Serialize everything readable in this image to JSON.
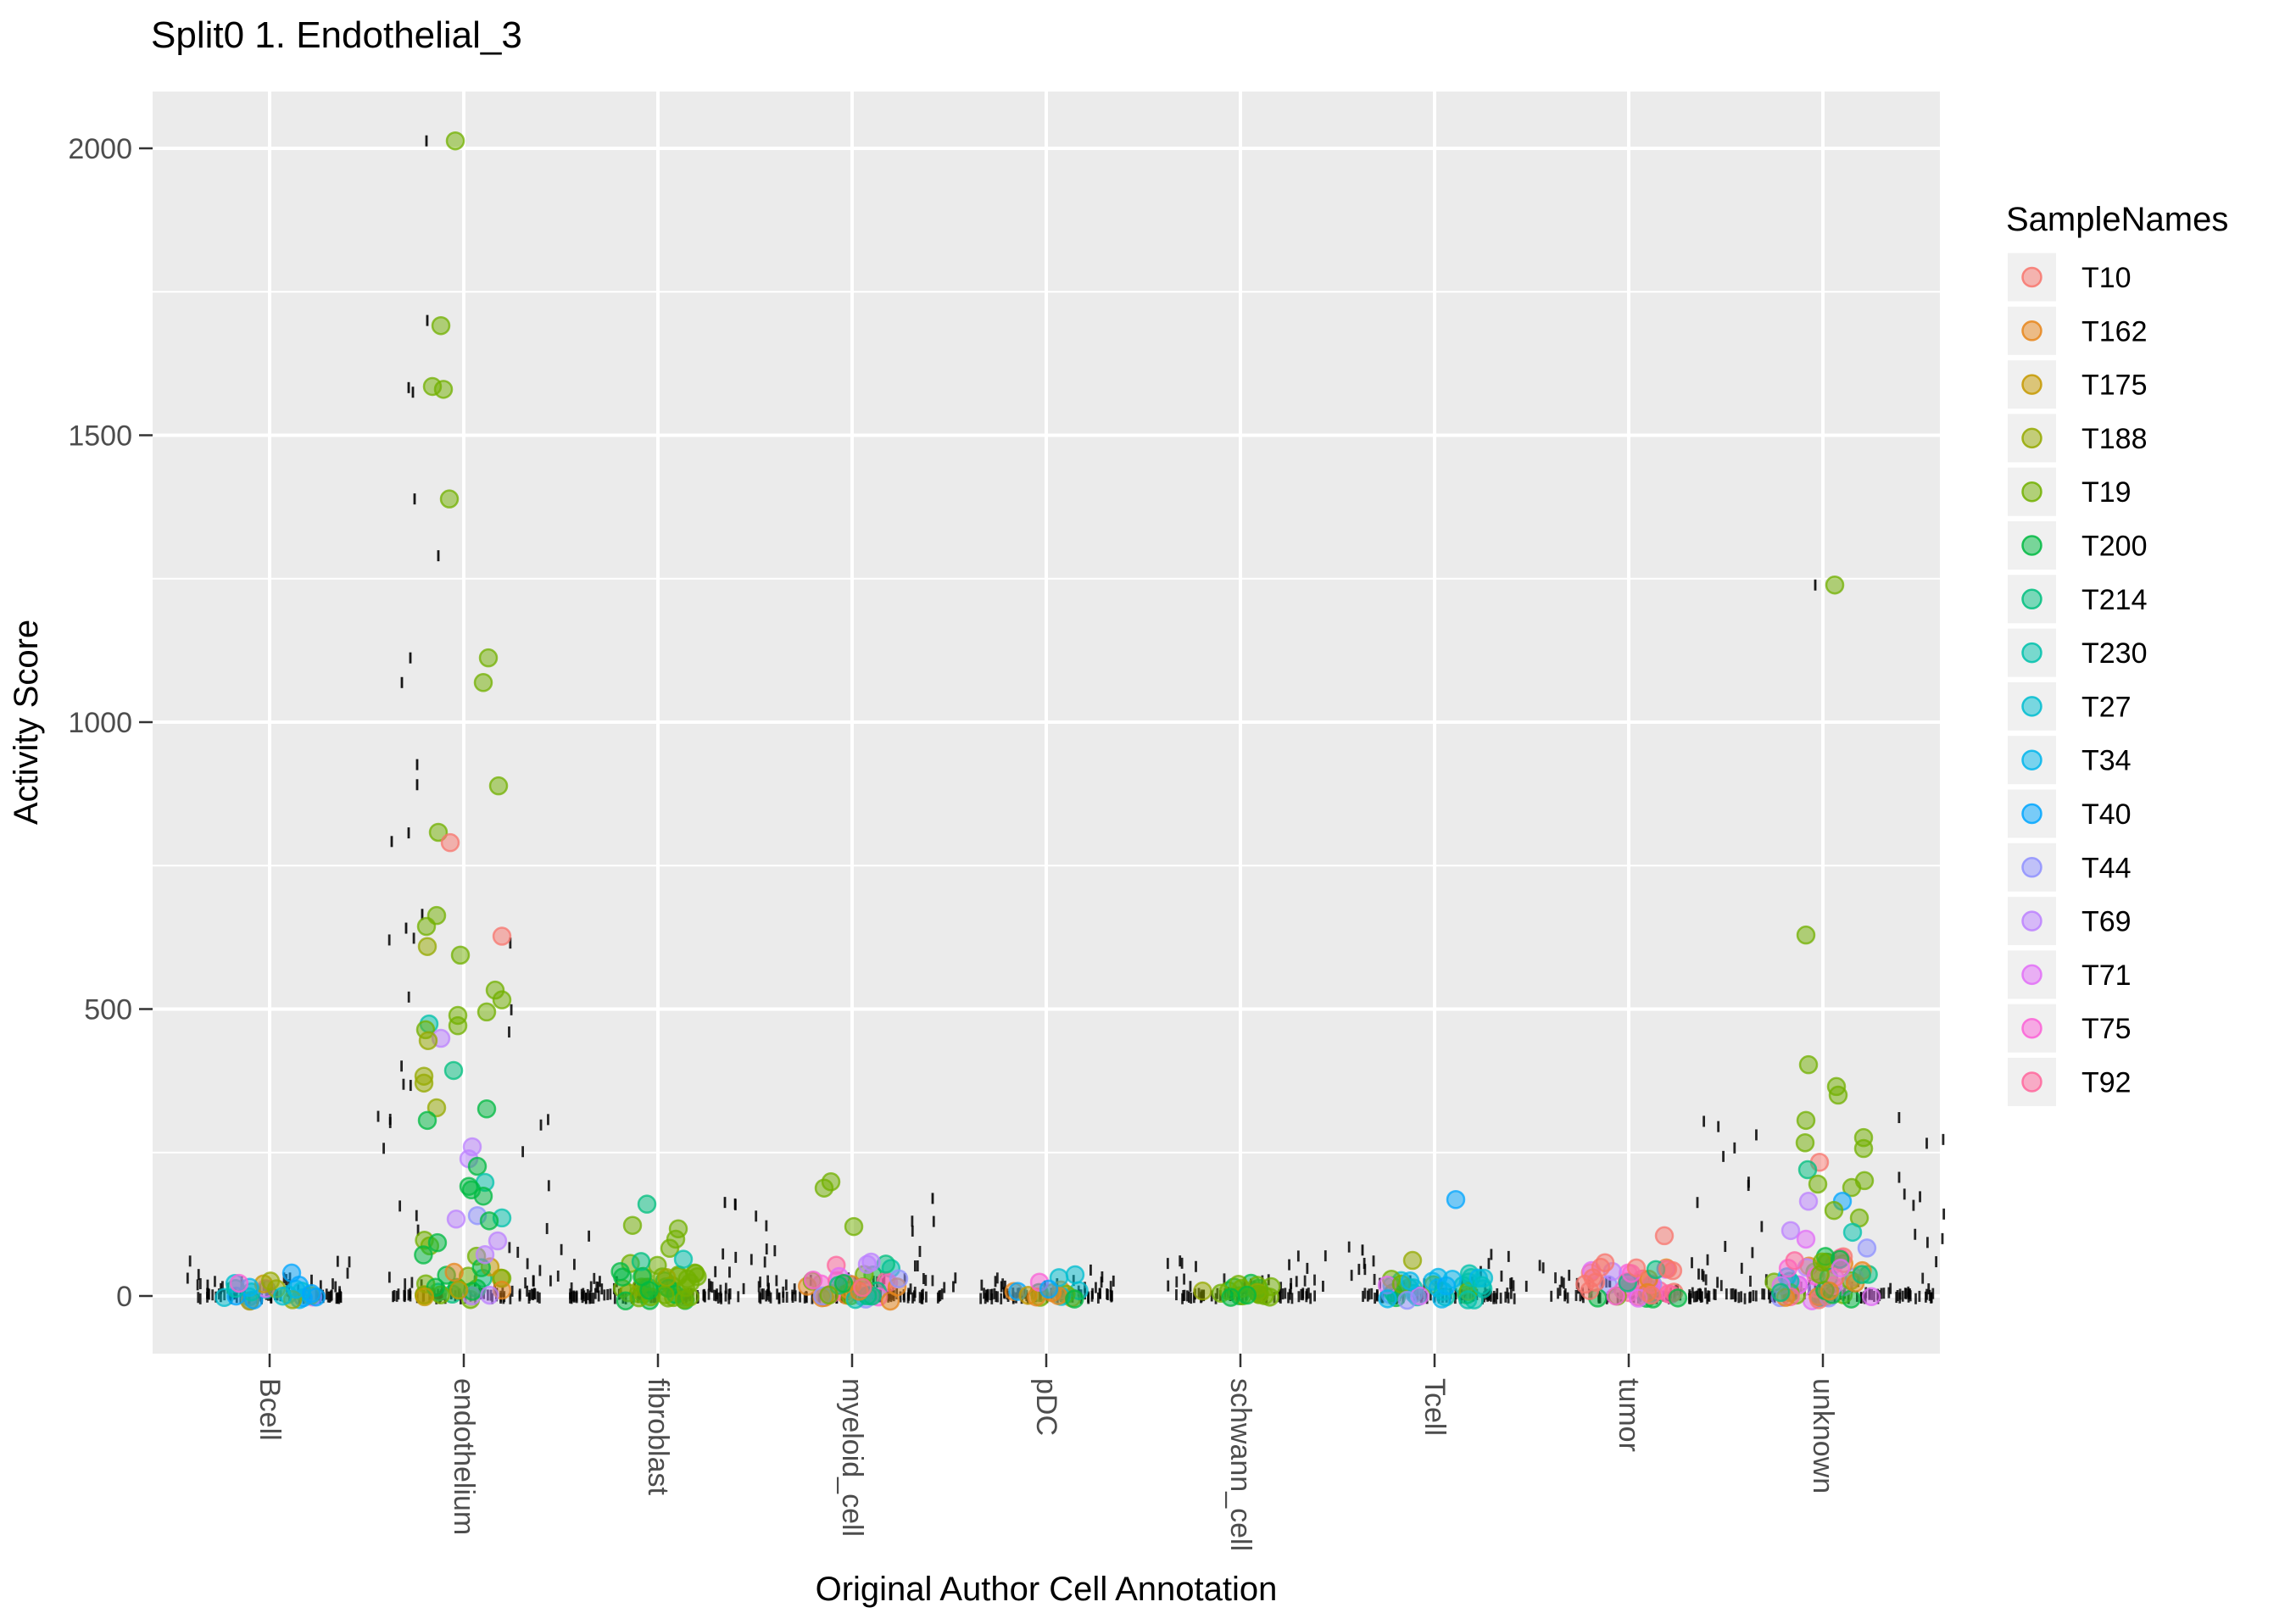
{
  "title": "Split0 1. Endothelial_3",
  "chart_data": {
    "type": "scatter",
    "title": "Split0 1. Endothelial_3",
    "xlabel": "Original Author Cell Annotation",
    "ylabel": "Activity Score",
    "legend_title": "SampleNames",
    "legend_position": "right",
    "x_categories": [
      "Bcell",
      "endothelium",
      "fibroblast",
      "myeloid_cell",
      "pDC",
      "schwann_cell",
      "Tcell",
      "tumor",
      "unknown"
    ],
    "y_ticks": [
      0,
      500,
      1000,
      1500,
      2000
    ],
    "y_minor_gridlines": [
      250,
      750,
      1250,
      1750
    ],
    "ylim": [
      -100,
      2100
    ],
    "grid": "white major+minor horizontal lines and one vertical line per category on grey panel",
    "samples": [
      {
        "name": "T10",
        "color": "#F8766D"
      },
      {
        "name": "T162",
        "color": "#E7861B"
      },
      {
        "name": "T175",
        "color": "#C59900"
      },
      {
        "name": "T188",
        "color": "#95A900"
      },
      {
        "name": "T19",
        "color": "#72B000"
      },
      {
        "name": "T200",
        "color": "#00BA42"
      },
      {
        "name": "T214",
        "color": "#00BF7F"
      },
      {
        "name": "T230",
        "color": "#00C1AB"
      },
      {
        "name": "T27",
        "color": "#00BDD0"
      },
      {
        "name": "T34",
        "color": "#00B5EC"
      },
      {
        "name": "T40",
        "color": "#00A6FF"
      },
      {
        "name": "T44",
        "color": "#8F91FF"
      },
      {
        "name": "T69",
        "color": "#BC81FF"
      },
      {
        "name": "T71",
        "color": "#E26EF7"
      },
      {
        "name": "T75",
        "color": "#FB61D7"
      },
      {
        "name": "T92",
        "color": "#FF669C"
      }
    ],
    "outlier_points": [
      [
        1,
        "T19",
        2013,
        -10
      ],
      [
        1,
        "T19",
        1691,
        -27
      ],
      [
        1,
        "T19",
        1585,
        -37
      ],
      [
        1,
        "T19",
        1580,
        -24
      ],
      [
        1,
        "T19",
        1389,
        -17
      ],
      [
        1,
        "T19",
        1112,
        29
      ],
      [
        1,
        "T19",
        1069,
        23
      ],
      [
        1,
        "T19",
        889,
        41
      ],
      [
        1,
        "T19",
        808,
        -30
      ],
      [
        1,
        "T10",
        790,
        -16
      ],
      [
        1,
        "T19",
        663,
        -32
      ],
      [
        1,
        "T19",
        644,
        -44
      ],
      [
        1,
        "T10",
        627,
        45
      ],
      [
        1,
        "T188",
        609,
        -43
      ],
      [
        1,
        "T19",
        594,
        -4
      ],
      [
        1,
        "T19",
        533,
        37
      ],
      [
        1,
        "T19",
        516,
        45
      ],
      [
        1,
        "T19",
        495,
        27
      ],
      [
        1,
        "T19",
        489,
        -7
      ],
      [
        1,
        "T230",
        474,
        -41
      ],
      [
        1,
        "T19",
        471,
        -7
      ],
      [
        1,
        "T19",
        464,
        -45
      ],
      [
        1,
        "T69",
        449,
        -27
      ],
      [
        1,
        "T188",
        445,
        -42
      ],
      [
        1,
        "T214",
        393,
        -12
      ],
      [
        1,
        "T188",
        383,
        -47
      ],
      [
        1,
        "T188",
        371,
        -47
      ],
      [
        1,
        "T188",
        328,
        -32
      ],
      [
        1,
        "T200",
        326,
        27
      ],
      [
        1,
        "T200",
        306,
        -43
      ],
      [
        1,
        "T69",
        260,
        10
      ],
      [
        1,
        "T69",
        239,
        6
      ],
      [
        1,
        "T200",
        226,
        16
      ],
      [
        1,
        "T230",
        198,
        25
      ],
      [
        1,
        "T200",
        191,
        6
      ],
      [
        1,
        "T200",
        185,
        9
      ],
      [
        1,
        "T200",
        174,
        23
      ],
      [
        1,
        "T44",
        140,
        16
      ],
      [
        1,
        "T230",
        136,
        45
      ],
      [
        1,
        "T69",
        134,
        -9
      ],
      [
        1,
        "T200",
        131,
        30
      ],
      [
        1,
        "T69",
        96,
        40
      ],
      [
        1,
        "T69",
        72,
        25
      ],
      [
        8,
        "T19",
        1239,
        14
      ],
      [
        8,
        "T19",
        629,
        -20
      ],
      [
        8,
        "T19",
        403,
        -17
      ],
      [
        8,
        "T19",
        365,
        16
      ],
      [
        8,
        "T19",
        350,
        18
      ],
      [
        8,
        "T19",
        306,
        -20
      ],
      [
        8,
        "T19",
        276,
        48
      ],
      [
        8,
        "T19",
        267,
        -21
      ],
      [
        8,
        "T19",
        257,
        48
      ],
      [
        8,
        "T10",
        233,
        -4
      ],
      [
        8,
        "T214",
        220,
        -18
      ],
      [
        8,
        "T19",
        201,
        49
      ],
      [
        8,
        "T19",
        195,
        -6
      ],
      [
        8,
        "T19",
        189,
        34
      ],
      [
        8,
        "T69",
        165,
        -17
      ],
      [
        8,
        "T40",
        165,
        23
      ],
      [
        8,
        "T19",
        149,
        13
      ],
      [
        8,
        "T19",
        136,
        43
      ],
      [
        8,
        "T69",
        114,
        -38
      ],
      [
        8,
        "T230",
        111,
        35
      ],
      [
        8,
        "T71",
        99,
        -20
      ],
      [
        2,
        "T214",
        160,
        -13
      ],
      [
        2,
        "T19",
        123,
        -30
      ],
      [
        2,
        "T19",
        117,
        24
      ],
      [
        2,
        "T19",
        99,
        21
      ],
      [
        2,
        "T19",
        83,
        14
      ],
      [
        2,
        "T230",
        64,
        30
      ],
      [
        2,
        "T214",
        60,
        -20
      ],
      [
        3,
        "T19",
        199,
        -25
      ],
      [
        3,
        "T19",
        188,
        -33
      ],
      [
        3,
        "T19",
        121,
        2
      ],
      [
        3,
        "T69",
        55,
        18
      ],
      [
        3,
        "T44",
        30,
        55
      ],
      [
        4,
        "T27",
        37,
        34
      ],
      [
        4,
        "T27",
        32,
        15
      ],
      [
        4,
        "T75",
        24,
        -8
      ],
      [
        4,
        "T40",
        12,
        3
      ],
      [
        6,
        "T40",
        168,
        25
      ],
      [
        6,
        "T188",
        62,
        -26
      ],
      [
        7,
        "T10",
        105,
        42
      ],
      [
        7,
        "T10",
        58,
        -28
      ],
      [
        7,
        "T10",
        50,
        -33
      ],
      [
        7,
        "T10",
        49,
        9
      ],
      [
        7,
        "T214",
        46,
        32
      ],
      [
        7,
        "T10",
        47,
        46
      ],
      [
        0,
        "T40",
        40,
        26
      ],
      [
        0,
        "T75",
        22,
        -36
      ],
      [
        0,
        "T188",
        26,
        1
      ]
    ],
    "clusters": [
      {
        "cat": 0,
        "count": 26,
        "vmax": 30,
        "half": 55,
        "samples": [
          "T27",
          "T27",
          "T34",
          "T34",
          "T40",
          "T40",
          "T230",
          "T230",
          "T44",
          "T175",
          "T188",
          "T71",
          "T27",
          "T34"
        ]
      },
      {
        "cat": 1,
        "count": 30,
        "vmax": 120,
        "half": 50,
        "samples": [
          "T200",
          "T200",
          "T200",
          "T200",
          "T19",
          "T19",
          "T19",
          "T162",
          "T175",
          "T214",
          "T69"
        ]
      },
      {
        "cat": 2,
        "count": 40,
        "vmax": 75,
        "half": 52,
        "samples": [
          "T19",
          "T19",
          "T19",
          "T19",
          "T19",
          "T200",
          "T200",
          "T200",
          "T214",
          "T188"
        ]
      },
      {
        "cat": 3,
        "count": 40,
        "vmax": 60,
        "half": 55,
        "samples": [
          "T19",
          "T19",
          "T200",
          "T200",
          "T162",
          "T162",
          "T71",
          "T69",
          "T44",
          "T214",
          "T230",
          "T75",
          "T92"
        ]
      },
      {
        "cat": 4,
        "count": 14,
        "vmax": 22,
        "half": 40,
        "samples": [
          "T27",
          "T230",
          "T34",
          "T40",
          "T162",
          "T175",
          "T200",
          "T19",
          "T75"
        ]
      },
      {
        "cat": 5,
        "count": 20,
        "vmax": 28,
        "half": 48,
        "samples": [
          "T19",
          "T19",
          "T19",
          "T200",
          "T200",
          "T188"
        ]
      },
      {
        "cat": 6,
        "count": 38,
        "vmax": 42,
        "half": 58,
        "samples": [
          "T34",
          "T40",
          "T27",
          "T230",
          "T19",
          "T200",
          "T188",
          "T44",
          "T71",
          "T40",
          "T34",
          "T230"
        ]
      },
      {
        "cat": 7,
        "count": 40,
        "vmax": 55,
        "half": 58,
        "samples": [
          "T10",
          "T10",
          "T10",
          "T92",
          "T92",
          "T75",
          "T75",
          "T71",
          "T71",
          "T162",
          "T162",
          "T200",
          "T214",
          "T19",
          "T69",
          "T44"
        ]
      },
      {
        "cat": 8,
        "count": 55,
        "vmax": 95,
        "half": 58,
        "samples": [
          "T19",
          "T19",
          "T19",
          "T19",
          "T200",
          "T200",
          "T162",
          "T162",
          "T71",
          "T71",
          "T69",
          "T75",
          "T92",
          "T44",
          "T34",
          "T230",
          "T10",
          "T214"
        ]
      }
    ],
    "rug": {
      "dash_height": 13,
      "dash_width": 2.8,
      "band": [
        {
          "cat": 0,
          "count": 80,
          "half": 85
        },
        {
          "cat": 1,
          "count": 70,
          "half": 90
        },
        {
          "cat": 2,
          "count": 85,
          "half": 105
        },
        {
          "cat": 3,
          "count": 90,
          "half": 110
        },
        {
          "cat": 4,
          "count": 70,
          "half": 78
        },
        {
          "cat": 5,
          "count": 75,
          "half": 88
        },
        {
          "cat": 6,
          "count": 85,
          "half": 95
        },
        {
          "cat": 7,
          "count": 80,
          "half": 95
        },
        {
          "cat": 8,
          "count": 95,
          "half": 130
        }
      ],
      "flank": [
        {
          "cat": 0,
          "count": 10,
          "vmax": 55
        },
        {
          "cat": 1,
          "count": 28,
          "vmax": 620
        },
        {
          "cat": 2,
          "count": 16,
          "vmax": 170
        },
        {
          "cat": 3,
          "count": 16,
          "vmax": 150
        },
        {
          "cat": 4,
          "count": 8,
          "vmax": 45
        },
        {
          "cat": 5,
          "count": 12,
          "vmax": 60
        },
        {
          "cat": 6,
          "count": 12,
          "vmax": 80
        },
        {
          "cat": 7,
          "count": 10,
          "vmax": 60
        },
        {
          "cat": 8,
          "count": 26,
          "vmax": 300
        }
      ],
      "explicit": [
        [
          1,
          2013,
          -44
        ],
        [
          1,
          1700,
          -43
        ],
        [
          1,
          1583,
          -65
        ],
        [
          1,
          1575,
          -60
        ],
        [
          1,
          1389,
          -58
        ],
        [
          1,
          1290,
          -30
        ],
        [
          1,
          1112,
          -63
        ],
        [
          1,
          1069,
          -73
        ],
        [
          1,
          926,
          -55
        ],
        [
          1,
          891,
          -55
        ],
        [
          1,
          807,
          -65
        ],
        [
          1,
          792,
          -85
        ],
        [
          1,
          665,
          -49
        ],
        [
          1,
          641,
          -68
        ],
        [
          8,
          1239,
          -9
        ],
        [
          6,
          80,
          -85
        ],
        [
          2,
          163,
          79
        ],
        [
          3,
          170,
          95
        ]
      ]
    },
    "style": {
      "panel_bg": "#EBEBEB",
      "grid_color": "#FFFFFF",
      "tick_color": "#333333",
      "tick_label_color": "#4D4D4D",
      "text_color": "#000000",
      "legend_key_bg": "#F0F0F0",
      "point_radius": 10,
      "point_fill_opacity": 0.5,
      "point_stroke_opacity": 0.75
    }
  }
}
